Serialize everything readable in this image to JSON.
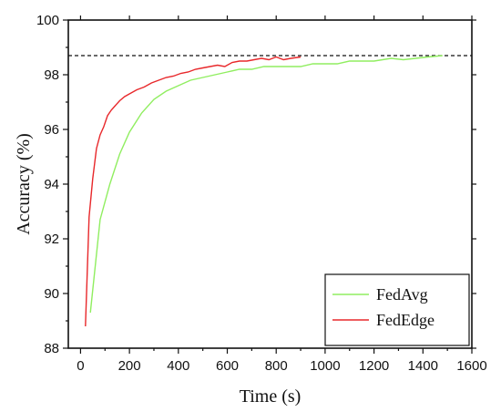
{
  "chart_data": {
    "type": "line",
    "title": "",
    "xlabel": "Time (s)",
    "ylabel": "Accuracy (%)",
    "xlim": [
      -50,
      1600
    ],
    "ylim": [
      88,
      100
    ],
    "x_ticks": [
      0,
      200,
      400,
      600,
      800,
      1000,
      1200,
      1400,
      1600
    ],
    "x_tick_labels": [
      "0",
      "200",
      "400",
      "600",
      "800",
      "1000",
      "1200",
      "1400",
      "1600"
    ],
    "y_ticks": [
      88,
      90,
      92,
      94,
      96,
      98,
      100
    ],
    "y_tick_labels": [
      "88",
      "90",
      "92",
      "94",
      "96",
      "98",
      "100"
    ],
    "reference_line": {
      "y": 98.7,
      "style": "dashed",
      "color": "#000000"
    },
    "grid": false,
    "legend": {
      "position": "bottom-right"
    },
    "series": [
      {
        "name": "FedAvg",
        "color": "#90EE60",
        "x": [
          40,
          80,
          120,
          160,
          200,
          250,
          300,
          350,
          400,
          450,
          500,
          550,
          600,
          650,
          700,
          750,
          800,
          850,
          900,
          950,
          1000,
          1050,
          1100,
          1150,
          1200,
          1270,
          1320,
          1370,
          1420,
          1480
        ],
        "y": [
          89.3,
          92.7,
          94.0,
          95.1,
          95.9,
          96.6,
          97.1,
          97.4,
          97.6,
          97.8,
          97.9,
          98.0,
          98.1,
          98.2,
          98.2,
          98.3,
          98.3,
          98.3,
          98.3,
          98.4,
          98.4,
          98.4,
          98.5,
          98.5,
          98.5,
          98.6,
          98.55,
          98.6,
          98.65,
          98.7
        ]
      },
      {
        "name": "FedEdge",
        "color": "#E8282B",
        "x": [
          20,
          35,
          50,
          65,
          80,
          95,
          110,
          125,
          140,
          160,
          180,
          200,
          230,
          260,
          290,
          320,
          350,
          380,
          410,
          440,
          470,
          500,
          530,
          560,
          590,
          620,
          650,
          680,
          710,
          740,
          770,
          800,
          830,
          860,
          900
        ],
        "y": [
          88.8,
          92.8,
          94.2,
          95.3,
          95.8,
          96.1,
          96.5,
          96.7,
          96.85,
          97.05,
          97.2,
          97.3,
          97.45,
          97.55,
          97.7,
          97.8,
          97.9,
          97.95,
          98.05,
          98.1,
          98.2,
          98.25,
          98.3,
          98.35,
          98.3,
          98.45,
          98.5,
          98.5,
          98.55,
          98.6,
          98.55,
          98.65,
          98.55,
          98.6,
          98.65
        ]
      }
    ]
  }
}
